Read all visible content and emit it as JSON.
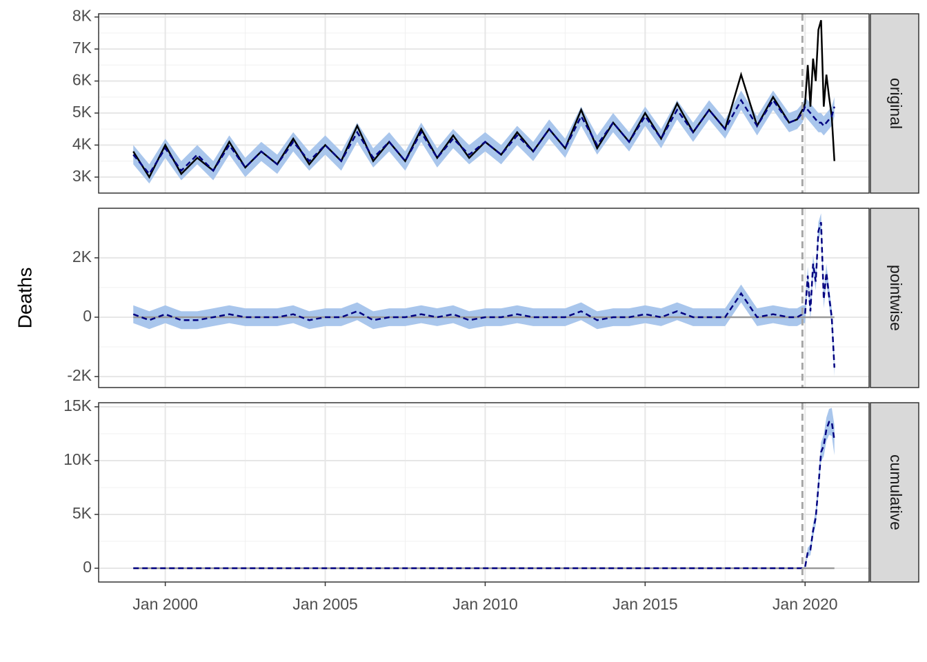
{
  "chart_data": {
    "type": "line",
    "y_label": "Deaths",
    "x": [
      "1999-01",
      "1999-07",
      "2000-01",
      "2000-07",
      "2001-01",
      "2001-07",
      "2002-01",
      "2002-07",
      "2003-01",
      "2003-07",
      "2004-01",
      "2004-07",
      "2005-01",
      "2005-07",
      "2006-01",
      "2006-07",
      "2007-01",
      "2007-07",
      "2008-01",
      "2008-07",
      "2009-01",
      "2009-07",
      "2010-01",
      "2010-07",
      "2011-01",
      "2011-07",
      "2012-01",
      "2012-07",
      "2013-01",
      "2013-07",
      "2014-01",
      "2014-07",
      "2015-01",
      "2015-07",
      "2016-01",
      "2016-07",
      "2017-01",
      "2017-07",
      "2018-01",
      "2018-07",
      "2019-01",
      "2019-07",
      "2019-10",
      "2019-12",
      "2020-01",
      "2020-02",
      "2020-03",
      "2020-04",
      "2020-05",
      "2020-06",
      "2020-07",
      "2020-08",
      "2020-09",
      "2020-10",
      "2020-11",
      "2020-12"
    ],
    "xlim": [
      "1997-12",
      "2022-01"
    ],
    "xticks": [
      {
        "value": "2000-01",
        "label": "Jan 2000"
      },
      {
        "value": "2005-01",
        "label": "Jan 2005"
      },
      {
        "value": "2010-01",
        "label": "Jan 2010"
      },
      {
        "value": "2015-01",
        "label": "Jan 2015"
      },
      {
        "value": "2020-01",
        "label": "Jan 2020"
      }
    ],
    "intervention": "2019-12",
    "panels": [
      {
        "strip": "original",
        "ylim": [
          2500,
          8100
        ],
        "yticks": [
          {
            "value": 3000,
            "label": "3K"
          },
          {
            "value": 4000,
            "label": "4K"
          },
          {
            "value": 5000,
            "label": "5K"
          },
          {
            "value": 6000,
            "label": "6K"
          },
          {
            "value": 7000,
            "label": "7K"
          },
          {
            "value": 8000,
            "label": "8K"
          }
        ],
        "observed": {
          "color": "#000000",
          "values": [
            3800,
            3000,
            4000,
            3100,
            3600,
            3200,
            4100,
            3300,
            3800,
            3400,
            4200,
            3400,
            4000,
            3500,
            4600,
            3500,
            4100,
            3500,
            4500,
            3600,
            4300,
            3600,
            4100,
            3700,
            4400,
            3800,
            4500,
            3900,
            5100,
            3900,
            4700,
            4100,
            5000,
            4200,
            5300,
            4400,
            5100,
            4500,
            6200,
            4600,
            5500,
            4700,
            4800,
            5100,
            5300,
            6500,
            5200,
            6700,
            6000,
            7600,
            7900,
            5200,
            6200,
            5500,
            4900,
            3500
          ]
        },
        "predicted": {
          "color": "#000080",
          "band_color": "#a9c6ec",
          "values": [
            3700,
            3100,
            3900,
            3200,
            3700,
            3200,
            4000,
            3300,
            3800,
            3400,
            4100,
            3500,
            4000,
            3500,
            4400,
            3600,
            4100,
            3500,
            4400,
            3600,
            4200,
            3700,
            4100,
            3700,
            4300,
            3800,
            4500,
            3900,
            4900,
            4000,
            4700,
            4100,
            4900,
            4200,
            5100,
            4400,
            5100,
            4500,
            5400,
            4600,
            5400,
            4700,
            4800,
            5000,
            5200,
            5100,
            5000,
            4900,
            4800,
            4700,
            4700,
            4600,
            4700,
            4800,
            4900,
            5200
          ],
          "lower": [
            3400,
            2800,
            3600,
            2900,
            3400,
            2900,
            3700,
            3000,
            3500,
            3100,
            3800,
            3200,
            3700,
            3200,
            4100,
            3300,
            3800,
            3200,
            4100,
            3300,
            3900,
            3400,
            3800,
            3400,
            4000,
            3500,
            4200,
            3600,
            4600,
            3700,
            4400,
            3800,
            4600,
            3900,
            4800,
            4100,
            4800,
            4200,
            5100,
            4300,
            5100,
            4400,
            4500,
            4700,
            4900,
            4800,
            4700,
            4600,
            4500,
            4400,
            4400,
            4300,
            4400,
            4500,
            4600,
            4900
          ],
          "upper": [
            4000,
            3400,
            4200,
            3500,
            4000,
            3500,
            4300,
            3600,
            4100,
            3700,
            4400,
            3800,
            4300,
            3800,
            4700,
            3900,
            4400,
            3800,
            4700,
            3900,
            4500,
            4000,
            4400,
            4000,
            4600,
            4100,
            4800,
            4200,
            5200,
            4300,
            5000,
            4400,
            5200,
            4500,
            5400,
            4700,
            5400,
            4800,
            5700,
            4900,
            5700,
            5000,
            5100,
            5300,
            5500,
            5400,
            5300,
            5200,
            5100,
            5000,
            5000,
            4900,
            5000,
            5100,
            5200,
            5500
          ]
        }
      },
      {
        "strip": "pointwise",
        "ylim": [
          -2370,
          3670
        ],
        "yticks": [
          {
            "value": -2000,
            "label": "-2K"
          },
          0,
          {
            "value": 2000,
            "label": "2K"
          }
        ],
        "predicted": {
          "color": "#000080",
          "band_color": "#a9c6ec",
          "values": [
            100,
            -100,
            100,
            -100,
            -100,
            0,
            100,
            0,
            0,
            0,
            100,
            -100,
            0,
            0,
            200,
            -100,
            0,
            0,
            100,
            0,
            100,
            -100,
            0,
            0,
            100,
            0,
            0,
            0,
            200,
            -100,
            0,
            0,
            100,
            0,
            200,
            0,
            0,
            0,
            800,
            0,
            100,
            0,
            0,
            100,
            100,
            1400,
            200,
            1800,
            1200,
            2900,
            3200,
            600,
            1500,
            700,
            0,
            -1700
          ],
          "lower": [
            -200,
            -400,
            -200,
            -400,
            -400,
            -300,
            -200,
            -300,
            -300,
            -300,
            -200,
            -400,
            -300,
            -300,
            -100,
            -400,
            -300,
            -300,
            -200,
            -300,
            -200,
            -400,
            -300,
            -300,
            -200,
            -300,
            -300,
            -300,
            -100,
            -400,
            -300,
            -300,
            -200,
            -300,
            -100,
            -300,
            -300,
            -300,
            500,
            -300,
            -200,
            -300,
            -300,
            -200,
            -200,
            1100,
            -100,
            1500,
            900,
            2600,
            2900,
            300,
            1200,
            400,
            -300,
            -2000
          ],
          "upper": [
            400,
            200,
            400,
            200,
            200,
            300,
            400,
            300,
            300,
            300,
            400,
            200,
            300,
            300,
            500,
            200,
            300,
            300,
            400,
            300,
            400,
            200,
            300,
            300,
            400,
            300,
            300,
            300,
            500,
            200,
            300,
            300,
            400,
            300,
            500,
            300,
            300,
            300,
            1100,
            300,
            400,
            300,
            300,
            400,
            400,
            1700,
            500,
            2100,
            1500,
            3200,
            3500,
            900,
            1800,
            1000,
            300,
            -1400
          ]
        }
      },
      {
        "strip": "cumulative",
        "ylim": [
          -1280,
          15380
        ],
        "yticks": [
          0,
          {
            "value": 5000,
            "label": "5K"
          },
          {
            "value": 10000,
            "label": "10K"
          },
          {
            "value": 15000,
            "label": "15K"
          }
        ],
        "predicted": {
          "color": "#000080",
          "band_color": "#a9c6ec",
          "values": [
            0,
            0,
            0,
            0,
            0,
            0,
            0,
            0,
            0,
            0,
            0,
            0,
            0,
            0,
            0,
            0,
            0,
            0,
            0,
            0,
            0,
            0,
            0,
            0,
            0,
            0,
            0,
            0,
            0,
            0,
            0,
            0,
            0,
            0,
            0,
            0,
            0,
            0,
            0,
            0,
            0,
            0,
            0,
            0,
            100,
            1500,
            1700,
            3500,
            4700,
            7600,
            10800,
            11400,
            12900,
            13600,
            13600,
            11900
          ],
          "lower": [
            0,
            0,
            0,
            0,
            0,
            0,
            0,
            0,
            0,
            0,
            0,
            0,
            0,
            0,
            0,
            0,
            0,
            0,
            0,
            0,
            0,
            0,
            0,
            0,
            0,
            0,
            0,
            0,
            0,
            0,
            0,
            0,
            0,
            0,
            0,
            0,
            0,
            0,
            0,
            0,
            0,
            0,
            0,
            0,
            0,
            1100,
            1200,
            2900,
            4000,
            6800,
            9900,
            10400,
            11800,
            12400,
            12300,
            10500
          ],
          "upper": [
            0,
            0,
            0,
            0,
            0,
            0,
            0,
            0,
            0,
            0,
            0,
            0,
            0,
            0,
            0,
            0,
            0,
            0,
            0,
            0,
            0,
            0,
            0,
            0,
            0,
            0,
            0,
            0,
            0,
            0,
            0,
            0,
            0,
            0,
            0,
            0,
            0,
            0,
            0,
            0,
            0,
            0,
            0,
            0,
            200,
            1900,
            2200,
            4100,
            5400,
            8400,
            11700,
            12400,
            14000,
            14800,
            14900,
            13300
          ]
        }
      }
    ]
  }
}
